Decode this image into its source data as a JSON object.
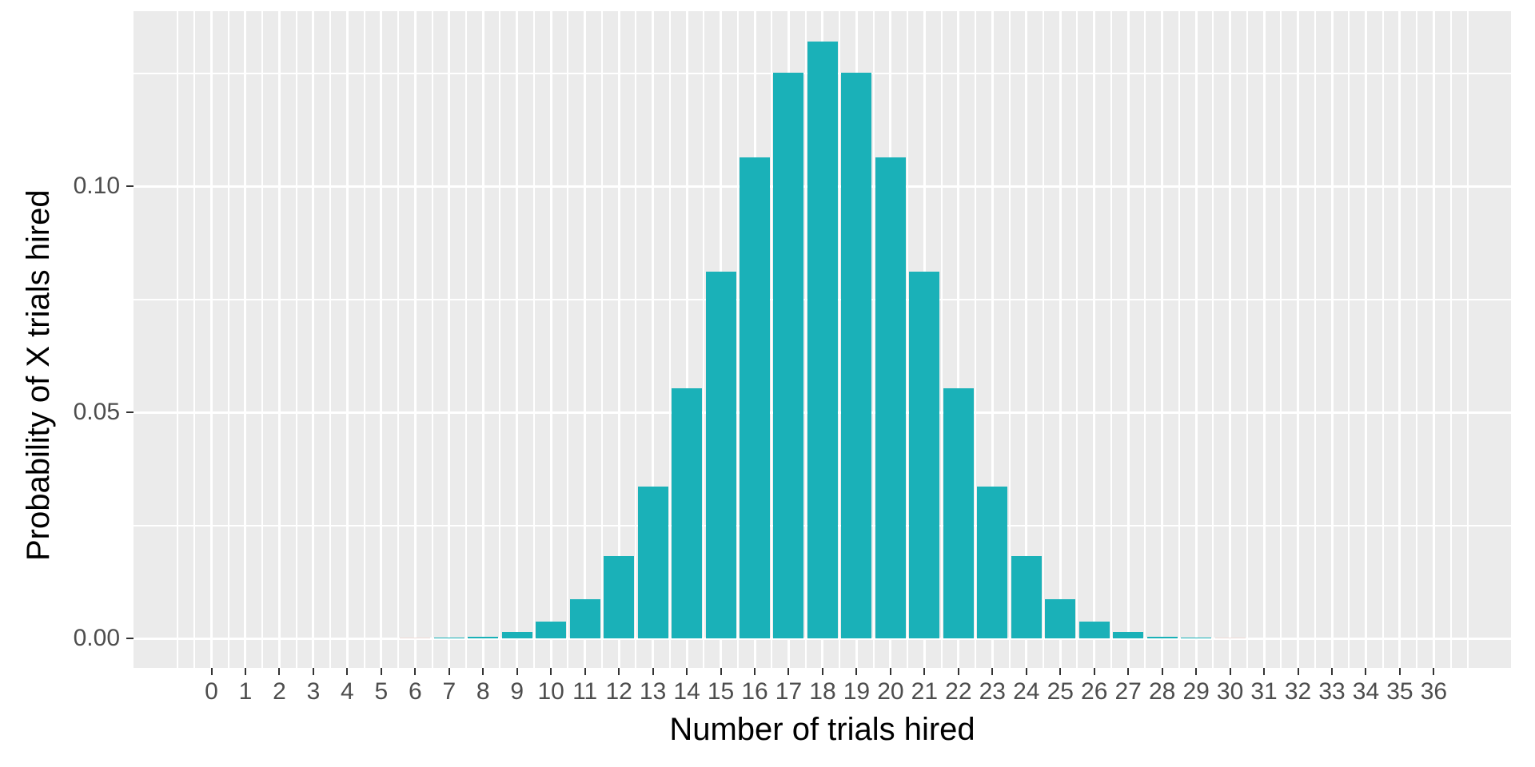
{
  "chart_data": {
    "type": "bar",
    "title": "",
    "xlabel": "Number of trials hired",
    "ylabel": "Probability of X trials hired",
    "x": [
      0,
      1,
      2,
      3,
      4,
      5,
      6,
      7,
      8,
      9,
      10,
      11,
      12,
      13,
      14,
      15,
      16,
      17,
      18,
      19,
      20,
      21,
      22,
      23,
      24,
      25,
      26,
      27,
      28,
      29,
      30,
      31,
      32,
      33,
      34,
      35,
      36
    ],
    "values": [
      1.5e-11,
      5.2e-10,
      9.2e-09,
      1e-07,
      8.6e-07,
      5.5e-06,
      2.83e-05,
      0.000121,
      0.00044,
      0.00137,
      0.003699,
      0.008743,
      0.018214,
      0.033626,
      0.055243,
      0.081022,
      0.106343,
      0.125109,
      0.132059,
      0.125109,
      0.106343,
      0.081022,
      0.055243,
      0.033626,
      0.018214,
      0.008743,
      0.003699,
      0.00137,
      0.00044,
      0.000121,
      2.83e-05,
      5.5e-06,
      8.6e-07,
      1e-07,
      9.2e-09,
      5.2e-10,
      1.5e-11
    ],
    "x_tick_labels": [
      "0",
      "1",
      "2",
      "3",
      "4",
      "5",
      "6",
      "7",
      "8",
      "9",
      "10",
      "11",
      "12",
      "13",
      "14",
      "15",
      "16",
      "17",
      "18",
      "19",
      "20",
      "21",
      "22",
      "23",
      "24",
      "25",
      "26",
      "27",
      "28",
      "29",
      "30",
      "31",
      "32",
      "33",
      "34",
      "35",
      "36"
    ],
    "y_ticks": [
      0.0,
      0.05,
      0.1
    ],
    "y_tick_labels": [
      "0.00",
      "0.05",
      "0.10"
    ],
    "ylim": [
      -0.0066,
      0.1387
    ],
    "xlim": [
      -2.3,
      38.3
    ],
    "grid": {
      "major": true,
      "minor": true,
      "x_minor_step": 0.5,
      "y_minor_step": 0.025,
      "x_grid_range": [
        -1,
        37
      ]
    },
    "legend_position": "none",
    "colors": {
      "bar_fill": "#1AB1B8",
      "panel_background": "#EBEBEB",
      "figure_background": "#FFFFFF",
      "grid_line": "#FFFFFF",
      "tick_label": "#4D4D4D",
      "axis_title": "#000000",
      "tick_mark": "#333333"
    }
  }
}
